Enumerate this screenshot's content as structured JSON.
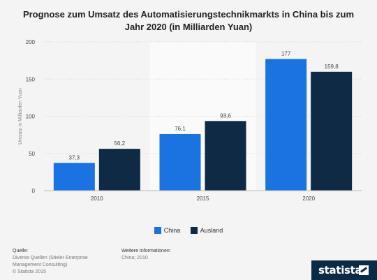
{
  "chart_data": {
    "type": "bar",
    "title": "Prognose zum Umsatz des Automatisierungstechnikmarkts in China bis zum Jahr 2020 (in Milliarden Yuan)",
    "categories": [
      "2010",
      "2015",
      "2020"
    ],
    "series": [
      {
        "name": "China",
        "values": [
          37.3,
          76.1,
          177
        ],
        "labels": [
          "37,3",
          "76,1",
          "177"
        ],
        "color": "#1a73e0"
      },
      {
        "name": "Ausland",
        "values": [
          56.2,
          93.6,
          159.8
        ],
        "labels": [
          "56,2",
          "93,6",
          "159,8"
        ],
        "color": "#0e2a44"
      }
    ],
    "ylabel": "Umsatz in Milliarden Yuan",
    "xlabel": "",
    "ylim": [
      0,
      200
    ],
    "yticks": [
      "0",
      "50",
      "100",
      "150",
      "200"
    ],
    "grid": true,
    "legend": "bottom"
  },
  "footer": {
    "source_heading": "Quelle:",
    "source_lines": [
      "Diverse Quellen (Stieler Enterprise Management Consulting)",
      "© Statista 2015"
    ],
    "info_heading": "Weitere Informationen:",
    "info_text": "China; 2010"
  },
  "brand": {
    "logo_text": "statista"
  }
}
